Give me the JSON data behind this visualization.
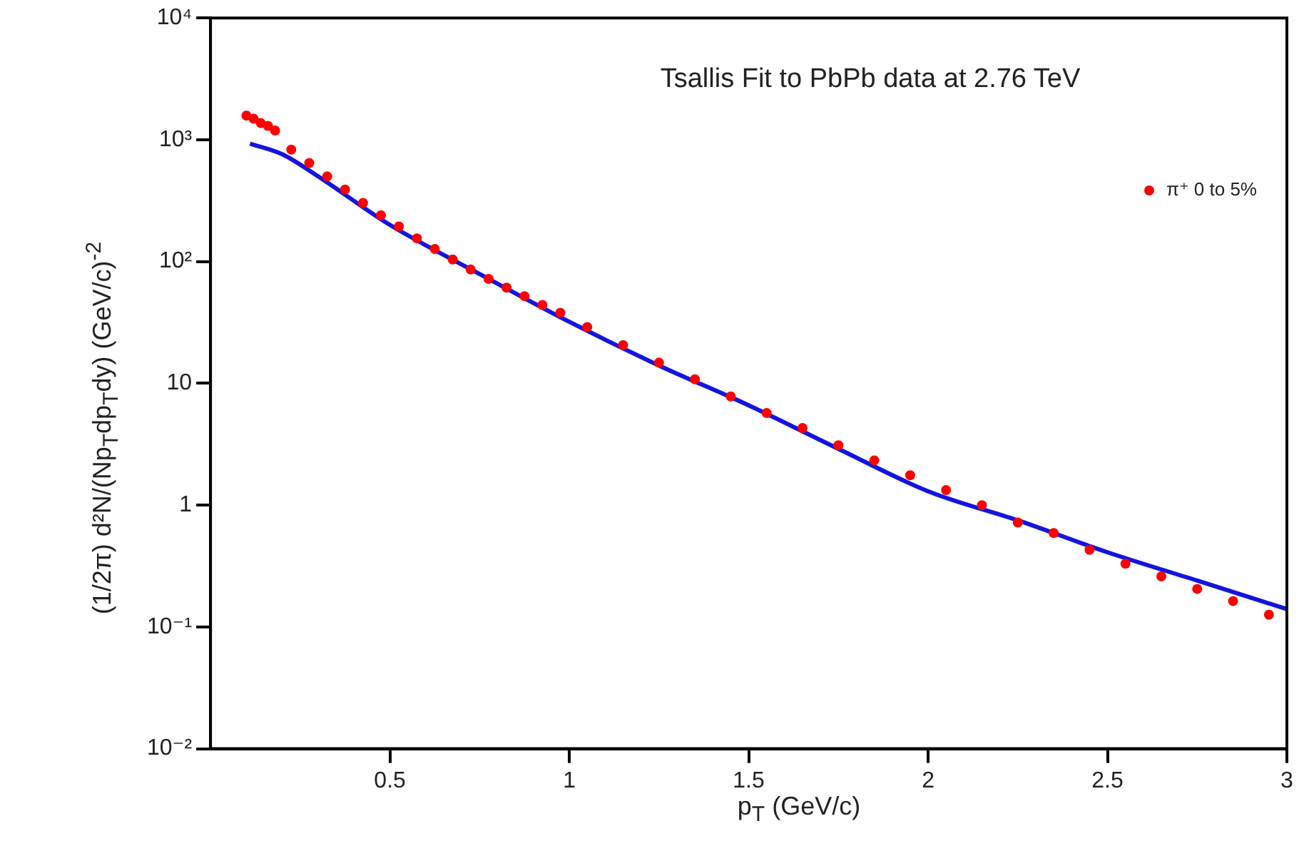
{
  "chart_data": {
    "type": "scatter",
    "xlabel": "p$_{T}$ (GeV/c)",
    "ylabel": "(1/2π) d²N/(Np$_{T}$dp$_{T}$dy) (GeV/c)$^{-2}$",
    "annotations": [
      "Tsallis Fit to PbPb data at 2.76 TeV"
    ],
    "xlim": [
      0,
      3
    ],
    "xticks": [
      0.5,
      1,
      1.5,
      2,
      2.5,
      3
    ],
    "ylim": [
      0.01,
      10000
    ],
    "yticks": [
      {
        "value": 0.01,
        "label": "10⁻²"
      },
      {
        "value": 0.1,
        "label": "10⁻¹"
      },
      1,
      10,
      {
        "value": 100,
        "label": "10²"
      },
      {
        "value": 1000,
        "label": "10³"
      },
      {
        "value": 10000,
        "label": "10⁴"
      }
    ],
    "log": "y",
    "grid": false,
    "legend": "top right",
    "marker": "circle",
    "series": [
      {
        "name": "π⁺ 0 to 5%",
        "color": "#ff0000",
        "x": [
          0.1,
          0.12,
          0.14,
          0.16,
          0.18,
          0.225,
          0.275,
          0.325,
          0.375,
          0.425,
          0.475,
          0.525,
          0.575,
          0.625,
          0.675,
          0.725,
          0.775,
          0.825,
          0.875,
          0.925,
          0.975,
          1.05,
          1.15,
          1.25,
          1.35,
          1.45,
          1.55,
          1.65,
          1.75,
          1.85,
          1.95,
          2.05,
          2.15,
          2.25,
          2.35,
          2.45,
          2.55,
          2.65,
          2.75,
          2.85,
          2.95
        ],
        "values": [
          1580,
          1490,
          1370,
          1300,
          1190,
          830,
          645,
          500,
          390,
          303,
          240,
          194,
          155,
          127,
          104,
          86,
          72,
          61,
          52,
          44,
          38,
          29,
          20.6,
          14.8,
          10.8,
          7.8,
          5.7,
          4.3,
          3.1,
          2.33,
          1.76,
          1.33,
          1.0,
          0.72,
          0.59,
          0.43,
          0.33,
          0.26,
          0.205,
          0.163,
          0.126
        ]
      },
      {
        "type": "line",
        "marker": "none",
        "color": "#1414e0",
        "x": [
          0.11,
          0.2,
          0.3,
          0.5,
          0.75,
          1.0,
          1.25,
          1.5,
          1.75,
          2.0,
          2.25,
          2.5,
          2.75,
          3.0
        ],
        "values": [
          930,
          760,
          500,
          200,
          79,
          32,
          14,
          6.6,
          2.9,
          1.3,
          0.75,
          0.41,
          0.24,
          0.14
        ]
      }
    ]
  }
}
